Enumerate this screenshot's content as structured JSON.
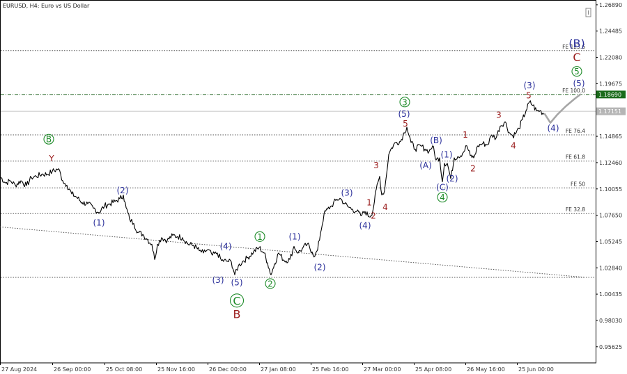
{
  "chart_data": {
    "type": "line",
    "title": "EURUSD, H4:  Euro vs US Dollar",
    "colors": {
      "price": "#000000",
      "projection": "#a6a6a6",
      "blue": "#2a2f9a",
      "green": "#1f8c2a",
      "red": "#9a1c1c",
      "level_line": "#555555",
      "highlight_line": "#1a5e1a",
      "highlight_badge": "#1a6b1a",
      "price_badge": "#b5b5b5"
    },
    "y_axis": {
      "ylim": [
        0.9415,
        1.272
      ],
      "ticks": [
        "1.26890",
        "1.24485",
        "1.22080",
        "1.19675",
        "1.17270",
        "1.14865",
        "1.12460",
        "1.10055",
        "1.07650",
        "1.05245",
        "1.02840",
        "1.00435",
        "0.98030",
        "0.95625"
      ]
    },
    "x_axis": {
      "range": [
        0,
        855
      ],
      "labels": [
        {
          "x": 0,
          "label": "27 Aug 2024"
        },
        {
          "x": 75,
          "label": "26 Sep 00:00"
        },
        {
          "x": 150,
          "label": "25 Oct 08:00"
        },
        {
          "x": 224,
          "label": "25 Nov 16:00"
        },
        {
          "x": 298,
          "label": "26 Dec 00:00"
        },
        {
          "x": 372,
          "label": "27 Jan 08:00"
        },
        {
          "x": 446,
          "label": "25 Feb 16:00"
        },
        {
          "x": 520,
          "label": "27 Mar 00:00"
        },
        {
          "x": 594,
          "label": "25 Apr 08:00"
        },
        {
          "x": 668,
          "label": "26 May 16:00"
        },
        {
          "x": 742,
          "label": "25 Jun 00:00"
        }
      ]
    },
    "badges": {
      "highlight": "1.18690",
      "current": "1.17151"
    },
    "levels": [
      {
        "value": 1.227,
        "label": "FE 123.6",
        "style": "dotted"
      },
      {
        "value": 1.1869,
        "label": "FE 100.0",
        "style": "dashdot"
      },
      {
        "value": 1.1715,
        "label": "",
        "style": "solid-grey"
      },
      {
        "value": 1.15,
        "label": "FE 76.4",
        "style": "dotted"
      },
      {
        "value": 1.126,
        "label": "FE 61.8",
        "style": "dotted"
      },
      {
        "value": 1.1015,
        "label": "FE 50",
        "style": "dotted"
      },
      {
        "value": 1.078,
        "label": "FE 32.8",
        "style": "dotted"
      },
      {
        "value": 1.0197,
        "label": "",
        "style": "dotted"
      }
    ],
    "trendline": {
      "x0": 0,
      "y0": 1.0658,
      "x1": 840,
      "y1": 1.0197
    },
    "price_series": {
      "x": [
        0,
        8,
        15,
        22,
        30,
        38,
        45,
        52,
        60,
        68,
        75,
        84,
        90,
        96,
        103,
        110,
        118,
        126,
        134,
        142,
        150,
        158,
        165,
        172,
        177,
        181,
        186,
        192,
        198,
        205,
        212,
        218,
        222,
        226,
        232,
        240,
        248,
        255,
        262,
        270,
        278,
        286,
        292,
        298,
        305,
        312,
        318,
        325,
        332,
        337,
        342,
        348,
        356,
        364,
        372,
        379,
        384,
        389,
        394,
        400,
        408,
        416,
        422,
        428,
        434,
        441,
        448,
        452,
        456,
        460,
        465,
        470,
        476,
        482,
        488,
        495,
        500,
        506,
        512,
        518,
        524,
        530,
        535,
        540,
        545,
        548,
        552,
        558,
        562,
        568,
        575,
        580,
        584,
        590,
        596,
        604,
        610,
        616,
        621,
        626,
        631,
        635,
        638,
        642,
        647,
        652,
        657,
        664,
        670,
        675,
        680,
        686,
        693,
        700,
        706,
        712,
        718,
        725,
        731,
        736,
        741,
        745,
        750,
        755,
        760,
        765,
        770,
        775,
        782
      ],
      "y": [
        1.112,
        1.106,
        1.108,
        1.104,
        1.108,
        1.1035,
        1.111,
        1.112,
        1.114,
        1.114,
        1.1165,
        1.119,
        1.108,
        1.104,
        1.096,
        1.093,
        1.088,
        1.087,
        1.083,
        1.079,
        1.085,
        1.087,
        1.089,
        1.0915,
        1.095,
        1.0835,
        1.073,
        1.069,
        1.061,
        1.059,
        1.054,
        1.05,
        1.036,
        1.05,
        1.056,
        1.0535,
        1.058,
        1.057,
        1.056,
        1.05,
        1.049,
        1.044,
        1.042,
        1.045,
        1.04,
        1.042,
        1.035,
        1.0345,
        1.034,
        1.022,
        1.03,
        1.034,
        1.038,
        1.043,
        1.047,
        1.042,
        1.033,
        1.022,
        1.032,
        1.042,
        1.035,
        1.036,
        1.048,
        1.042,
        1.046,
        1.05,
        1.043,
        1.039,
        1.045,
        1.06,
        1.077,
        1.082,
        1.085,
        1.09,
        1.092,
        1.087,
        1.084,
        1.082,
        1.08,
        1.076,
        1.08,
        1.075,
        1.08,
        1.1,
        1.112,
        1.095,
        1.099,
        1.132,
        1.138,
        1.143,
        1.144,
        1.152,
        1.157,
        1.143,
        1.137,
        1.14,
        1.137,
        1.135,
        1.14,
        1.127,
        1.129,
        1.107,
        1.124,
        1.124,
        1.11,
        1.129,
        1.13,
        1.133,
        1.14,
        1.131,
        1.129,
        1.14,
        1.142,
        1.141,
        1.15,
        1.147,
        1.158,
        1.162,
        1.152,
        1.149,
        1.152,
        1.156,
        1.164,
        1.172,
        1.18,
        1.177,
        1.172,
        1.172,
        1.169
      ]
    },
    "projection_series": {
      "x": [
        782,
        790,
        800,
        812,
        825,
        833
      ],
      "y": [
        1.169,
        1.161,
        1.1685,
        1.176,
        1.183,
        1.1869
      ]
    },
    "annotations": [
      {
        "text": "Y",
        "x": 74,
        "y": 1.1285,
        "color": "red",
        "kind": "plain"
      },
      {
        "text": "B",
        "x": 70,
        "y": 1.146,
        "color": "green",
        "kind": "circle"
      },
      {
        "text": "(2)",
        "x": 176,
        "y": 1.099,
        "color": "blue",
        "kind": "plain"
      },
      {
        "text": "(1)",
        "x": 142,
        "y": 1.0695,
        "color": "blue",
        "kind": "plain"
      },
      {
        "text": "(4)",
        "x": 324,
        "y": 1.048,
        "color": "blue",
        "kind": "plain"
      },
      {
        "text": "(3)",
        "x": 313,
        "y": 1.017,
        "color": "blue",
        "kind": "plain"
      },
      {
        "text": "(5)",
        "x": 340,
        "y": 1.015,
        "color": "blue",
        "kind": "plain"
      },
      {
        "text": "C",
        "x": 340,
        "y": 0.9985,
        "color": "green",
        "kind": "circle-large"
      },
      {
        "text": "B",
        "x": 340,
        "y": 0.985,
        "color": "red",
        "kind": "plain-large"
      },
      {
        "text": "1",
        "x": 373,
        "y": 1.057,
        "color": "green",
        "kind": "circle"
      },
      {
        "text": "2",
        "x": 388,
        "y": 1.014,
        "color": "green",
        "kind": "circle"
      },
      {
        "text": "(1)",
        "x": 423,
        "y": 1.057,
        "color": "blue",
        "kind": "plain"
      },
      {
        "text": "(2)",
        "x": 459,
        "y": 1.029,
        "color": "blue",
        "kind": "plain"
      },
      {
        "text": "(3)",
        "x": 498,
        "y": 1.097,
        "color": "blue",
        "kind": "plain"
      },
      {
        "text": "1",
        "x": 530,
        "y": 1.088,
        "color": "red",
        "kind": "plain"
      },
      {
        "text": "2",
        "x": 536,
        "y": 1.076,
        "color": "red",
        "kind": "plain"
      },
      {
        "text": "(4)",
        "x": 524,
        "y": 1.067,
        "color": "blue",
        "kind": "plain"
      },
      {
        "text": "3",
        "x": 540,
        "y": 1.122,
        "color": "red",
        "kind": "plain"
      },
      {
        "text": "4",
        "x": 553,
        "y": 1.084,
        "color": "red",
        "kind": "plain"
      },
      {
        "text": "5",
        "x": 582,
        "y": 1.16,
        "color": "red",
        "kind": "plain"
      },
      {
        "text": "(5)",
        "x": 580,
        "y": 1.169,
        "color": "blue",
        "kind": "plain"
      },
      {
        "text": "3",
        "x": 581,
        "y": 1.18,
        "color": "green",
        "kind": "circle"
      },
      {
        "text": "(A)",
        "x": 611,
        "y": 1.122,
        "color": "blue",
        "kind": "plain"
      },
      {
        "text": "(B)",
        "x": 626,
        "y": 1.145,
        "color": "blue",
        "kind": "plain"
      },
      {
        "text": "(1)",
        "x": 641,
        "y": 1.132,
        "color": "blue",
        "kind": "plain"
      },
      {
        "text": "(2)",
        "x": 649,
        "y": 1.11,
        "color": "blue",
        "kind": "plain"
      },
      {
        "text": "(C)",
        "x": 635,
        "y": 1.102,
        "color": "blue",
        "kind": "plain"
      },
      {
        "text": "4",
        "x": 635,
        "y": 1.093,
        "color": "green",
        "kind": "circle"
      },
      {
        "text": "1",
        "x": 668,
        "y": 1.15,
        "color": "red",
        "kind": "plain"
      },
      {
        "text": "2",
        "x": 679,
        "y": 1.119,
        "color": "red",
        "kind": "plain"
      },
      {
        "text": "3",
        "x": 716,
        "y": 1.168,
        "color": "red",
        "kind": "plain"
      },
      {
        "text": "4",
        "x": 737,
        "y": 1.14,
        "color": "red",
        "kind": "plain"
      },
      {
        "text": "(3)",
        "x": 760,
        "y": 1.195,
        "color": "blue",
        "kind": "plain"
      },
      {
        "text": "5",
        "x": 759,
        "y": 1.186,
        "color": "red",
        "kind": "plain"
      },
      {
        "text": "(4)",
        "x": 794,
        "y": 1.156,
        "color": "blue",
        "kind": "plain"
      },
      {
        "text": "(5)",
        "x": 831,
        "y": 1.197,
        "color": "blue",
        "kind": "plain"
      },
      {
        "text": "5",
        "x": 828,
        "y": 1.208,
        "color": "green",
        "kind": "circle"
      },
      {
        "text": "C",
        "x": 828,
        "y": 1.22,
        "color": "red",
        "kind": "plain-large"
      },
      {
        "text": "(B)",
        "x": 828,
        "y": 1.2325,
        "color": "blue",
        "kind": "plain-large"
      }
    ]
  }
}
